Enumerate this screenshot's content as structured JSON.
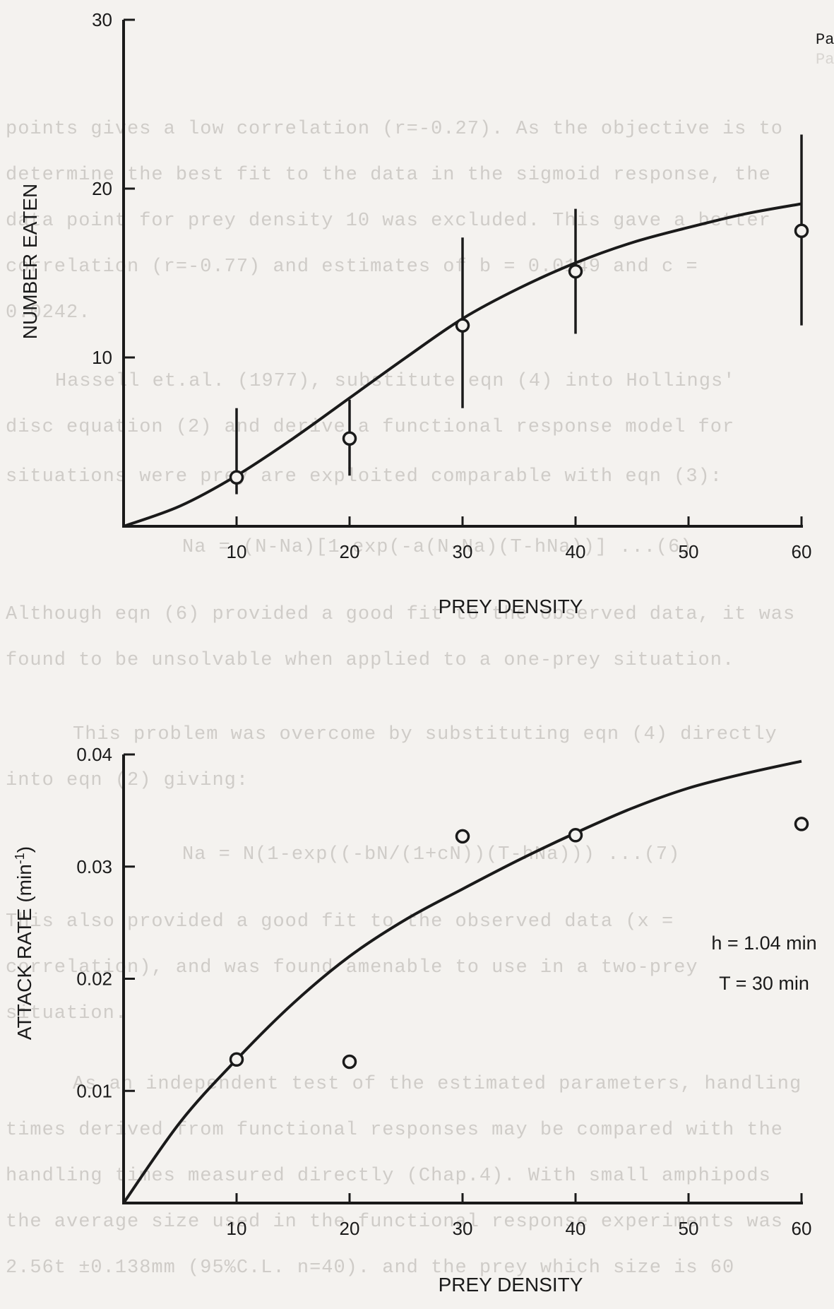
{
  "faint_text": {
    "corner": [
      "Pa",
      "Pa"
    ],
    "lines": [
      "points gives a low correlation (r=-0.27). As the objective is to",
      "determine the best fit to the data in the sigmoid response, the",
      "data point for prey density 10 was excluded. This gave a better",
      "correlation (r=-0.77) and estimates of b = 0.0149 and c =",
      "0.0242.",
      "Hassell et.al. (1977), substitute eqn (4) into Hollings'",
      "disc equation (2) and derive a functional response model for",
      "situations were prey are exploited comparable with eqn (3):",
      "Na = (N-Na)[1-exp(-a(N-Na)(T-hNa))]         ...(6)",
      "Although eqn (6) provided a good fit to the observed data, it was",
      "found to be unsolvable when applied to a one-prey situation.",
      "This problem was overcome by substituting eqn (4) directly",
      "into eqn (2) giving:",
      "Na = N(1-exp((-bN/(1+cN))(T-hNa)))        ...(7)",
      "This also provided a good fit to the observed data (x  =",
      "correlation), and was found amenable to use in a two-prey",
      "situation.",
      "As an independent test of the estimated parameters, handling",
      "times derived from functional responses may be compared with the",
      "handling times measured directly (Chap.4). With small amphipods",
      "the average size used in the functional response experiments was",
      "2.56t ±0.138mm (95%C.L. n=40). and the prey which size is 60"
    ]
  },
  "chart_data": [
    {
      "type": "scatter",
      "xlabel": "PREY DENSITY",
      "ylabel": "NUMBER EATEN",
      "xlim": [
        0,
        60
      ],
      "ylim": [
        0,
        30
      ],
      "x_ticks": [
        10,
        20,
        30,
        40,
        50,
        60
      ],
      "y_ticks": [
        10,
        20,
        30
      ],
      "points": [
        {
          "x": 10,
          "y": 2.9,
          "err_low": 1.9,
          "err_high": 7.0
        },
        {
          "x": 20,
          "y": 5.2,
          "err_low": 3.0,
          "err_high": 7.5
        },
        {
          "x": 30,
          "y": 11.9,
          "err_low": 7.0,
          "err_high": 17.1
        },
        {
          "x": 40,
          "y": 15.1,
          "err_low": 11.4,
          "err_high": 18.8
        },
        {
          "x": 60,
          "y": 17.5,
          "err_low": 11.9,
          "err_high": 23.2
        }
      ],
      "fitted_curve": {
        "x": [
          0,
          5,
          10,
          15,
          20,
          25,
          30,
          35,
          40,
          45,
          50,
          55,
          60
        ],
        "y": [
          0,
          1.2,
          3.0,
          5.2,
          7.6,
          10.0,
          12.3,
          14.1,
          15.6,
          16.8,
          17.7,
          18.5,
          19.1
        ]
      },
      "grid": false,
      "legend": "none"
    },
    {
      "type": "scatter",
      "xlabel": "PREY DENSITY",
      "ylabel": "ATTACK RATE (min-1)",
      "ylabel_main": "ATTACK RATE (min",
      "ylabel_sup": "-1",
      "ylabel_end": ")",
      "xlim": [
        0,
        60
      ],
      "ylim": [
        0,
        0.04
      ],
      "x_ticks": [
        10,
        20,
        30,
        40,
        50,
        60
      ],
      "y_ticks": [
        0.01,
        0.02,
        0.03,
        0.04
      ],
      "y_tick_labels": [
        "0.01",
        "0.02",
        "0.03",
        "0.04"
      ],
      "points": [
        {
          "x": 10,
          "y": 0.0128
        },
        {
          "x": 20,
          "y": 0.0126
        },
        {
          "x": 30,
          "y": 0.0327
        },
        {
          "x": 40,
          "y": 0.0328
        },
        {
          "x": 60,
          "y": 0.0338
        }
      ],
      "fitted_curve": {
        "x": [
          0,
          5,
          10,
          15,
          20,
          25,
          30,
          35,
          40,
          45,
          50,
          55,
          60
        ],
        "y": [
          0,
          0.0072,
          0.0128,
          0.0178,
          0.022,
          0.0253,
          0.028,
          0.0306,
          0.033,
          0.0352,
          0.037,
          0.0383,
          0.0394
        ]
      },
      "annotations": [
        "h = 1.04 min",
        "T = 30 min"
      ],
      "grid": false,
      "legend": "none"
    }
  ]
}
